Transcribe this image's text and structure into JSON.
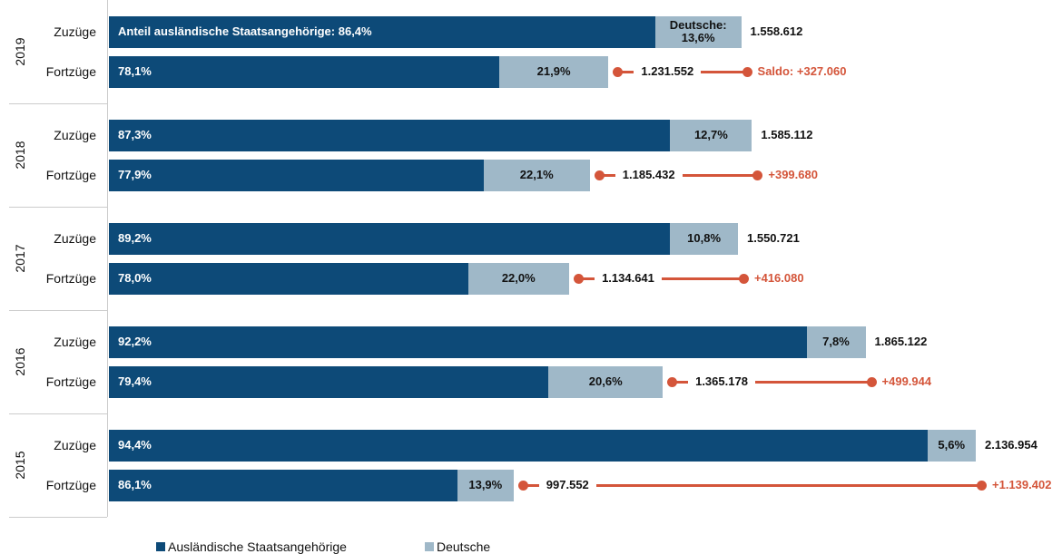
{
  "chart_data": {
    "type": "stacked-bar",
    "series": [
      {
        "name": "Ausländische Staatsangehörige",
        "color": "#0d4a78"
      },
      {
        "name": "Deutsche",
        "color": "#9fb8c8"
      }
    ],
    "saldo_color": "#d4553a",
    "groups": [
      {
        "label": "2019",
        "saldo": 327060,
        "saldo_label": "Saldo: +327.060",
        "bars": [
          {
            "label": "Zuzüge",
            "total": 1558612,
            "total_label": "1.558.612",
            "values": [
              86.4,
              13.6
            ],
            "value_labels": [
              "Anteil ausländische Staatsangehörige: 86,4%",
              "Deutsche: 13,6%"
            ]
          },
          {
            "label": "Fortzüge",
            "total": 1231552,
            "total_label": "1.231.552",
            "values": [
              78.1,
              21.9
            ],
            "value_labels": [
              "78,1%",
              "21,9%"
            ]
          }
        ]
      },
      {
        "label": "2018",
        "saldo": 399680,
        "saldo_label": "+399.680",
        "bars": [
          {
            "label": "Zuzüge",
            "total": 1585112,
            "total_label": "1.585.112",
            "values": [
              87.3,
              12.7
            ],
            "value_labels": [
              "87,3%",
              "12,7%"
            ]
          },
          {
            "label": "Fortzüge",
            "total": 1185432,
            "total_label": "1.185.432",
            "values": [
              77.9,
              22.1
            ],
            "value_labels": [
              "77,9%",
              "22,1%"
            ]
          }
        ]
      },
      {
        "label": "2017",
        "saldo": 416080,
        "saldo_label": "+416.080",
        "bars": [
          {
            "label": "Zuzüge",
            "total": 1550721,
            "total_label": "1.550.721",
            "values": [
              89.2,
              10.8
            ],
            "value_labels": [
              "89,2%",
              "10,8%"
            ]
          },
          {
            "label": "Fortzüge",
            "total": 1134641,
            "total_label": "1.134.641",
            "values": [
              78.0,
              22.0
            ],
            "value_labels": [
              "78,0%",
              "22,0%"
            ]
          }
        ]
      },
      {
        "label": "2016",
        "saldo": 499944,
        "saldo_label": "+499.944",
        "bars": [
          {
            "label": "Zuzüge",
            "total": 1865122,
            "total_label": "1.865.122",
            "values": [
              92.2,
              7.8
            ],
            "value_labels": [
              "92,2%",
              "7,8%"
            ]
          },
          {
            "label": "Fortzüge",
            "total": 1365178,
            "total_label": "1.365.178",
            "values": [
              79.4,
              20.6
            ],
            "value_labels": [
              "79,4%",
              "20,6%"
            ]
          }
        ]
      },
      {
        "label": "2015",
        "saldo": 1139402,
        "saldo_label": "+1.139.402",
        "bars": [
          {
            "label": "Zuzüge",
            "total": 2136954,
            "total_label": "2.136.954",
            "values": [
              94.4,
              5.6
            ],
            "value_labels": [
              "94,4%",
              "5,6%"
            ]
          },
          {
            "label": "Fortzüge",
            "total": 997552,
            "total_label": "997.552",
            "values": [
              86.1,
              13.9
            ],
            "value_labels": [
              "86,1%",
              "13,9%"
            ]
          }
        ]
      }
    ]
  }
}
